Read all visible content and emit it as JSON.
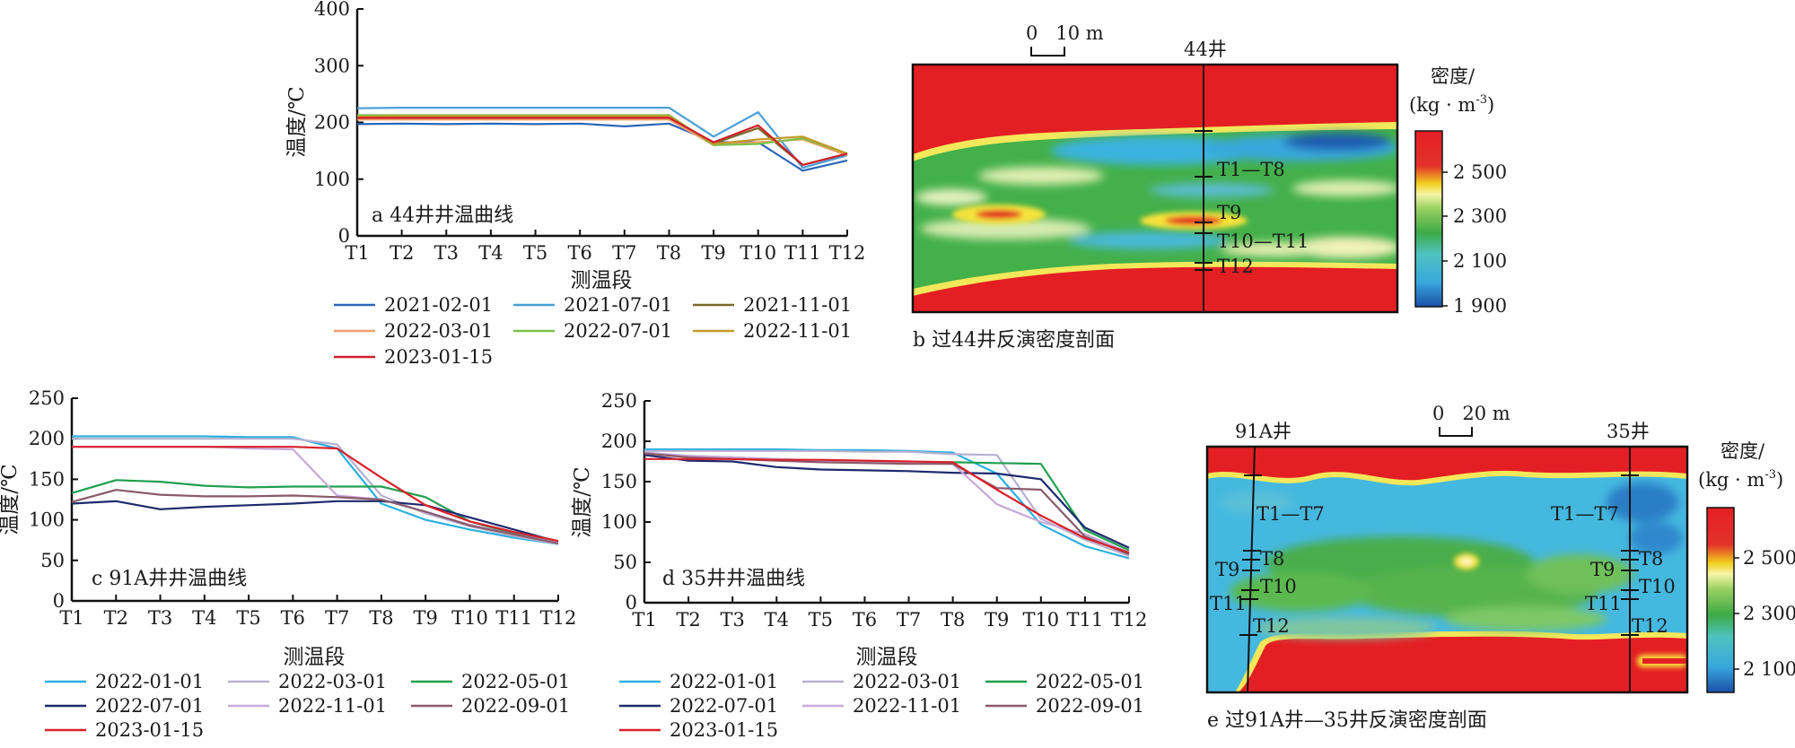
{
  "segments": [
    "T1",
    "T2",
    "T3",
    "T4",
    "T5",
    "T6",
    "T7",
    "T8",
    "T9",
    "T10",
    "T11",
    "T12"
  ],
  "chart_data": [
    {
      "id": "a",
      "type": "line",
      "caption": "a 44井井温曲线",
      "xlabel": "测温段",
      "ylabel": "温度/℃",
      "ylim": [
        0,
        400
      ],
      "yticks": [
        0,
        100,
        200,
        300,
        400
      ],
      "categories": [
        "T1",
        "T2",
        "T3",
        "T4",
        "T5",
        "T6",
        "T7",
        "T8",
        "T9",
        "T10",
        "T11",
        "T12"
      ],
      "series": [
        {
          "name": "2021-02-01",
          "color": "#2a66b8",
          "values": [
            197,
            198,
            197,
            198,
            197,
            198,
            193,
            198,
            165,
            165,
            115,
            133
          ]
        },
        {
          "name": "2021-07-01",
          "color": "#4a9fd8",
          "values": [
            225,
            226,
            226,
            226,
            226,
            226,
            226,
            226,
            175,
            218,
            120,
            142
          ]
        },
        {
          "name": "2021-11-01",
          "color": "#7a6a2a",
          "values": [
            210,
            210,
            210,
            210,
            210,
            210,
            210,
            210,
            163,
            190,
            125,
            145
          ]
        },
        {
          "name": "2022-03-01",
          "color": "#f0a06a",
          "values": [
            205,
            205,
            205,
            205,
            205,
            205,
            205,
            205,
            160,
            165,
            170,
            142
          ]
        },
        {
          "name": "2022-07-01",
          "color": "#7cc04a",
          "values": [
            213,
            213,
            213,
            213,
            213,
            213,
            213,
            213,
            160,
            162,
            172,
            145
          ]
        },
        {
          "name": "2022-11-01",
          "color": "#c49a2a",
          "values": [
            210,
            211,
            211,
            211,
            211,
            211,
            211,
            211,
            162,
            170,
            175,
            145
          ]
        },
        {
          "name": "2023-01-15",
          "color": "#d0202a",
          "values": [
            208,
            208,
            208,
            208,
            208,
            208,
            208,
            208,
            165,
            195,
            125,
            145
          ]
        }
      ]
    },
    {
      "id": "c",
      "type": "line",
      "caption": "c 91A井井温曲线",
      "xlabel": "测温段",
      "ylabel": "温度/℃",
      "ylim": [
        0,
        250
      ],
      "yticks": [
        0,
        50,
        100,
        150,
        200,
        250
      ],
      "categories": [
        "T1",
        "T2",
        "T3",
        "T4",
        "T5",
        "T6",
        "T7",
        "T8",
        "T9",
        "T10",
        "T11",
        "T12"
      ],
      "series": [
        {
          "name": "2022-01-01",
          "color": "#2ab0e0",
          "values": [
            203,
            203,
            203,
            203,
            202,
            202,
            188,
            120,
            100,
            88,
            78,
            70
          ]
        },
        {
          "name": "2022-03-01",
          "color": "#b8b0d0",
          "values": [
            200,
            200,
            200,
            200,
            200,
            200,
            193,
            130,
            108,
            92,
            80,
            70
          ]
        },
        {
          "name": "2022-05-01",
          "color": "#20a050",
          "values": [
            133,
            149,
            147,
            142,
            140,
            141,
            141,
            141,
            128,
            98,
            83,
            72
          ]
        },
        {
          "name": "2022-07-01",
          "color": "#1e2a6e",
          "values": [
            120,
            123,
            113,
            116,
            118,
            120,
            123,
            123,
            118,
            103,
            88,
            73
          ]
        },
        {
          "name": "2022-11-01",
          "color": "#c8a8d8",
          "values": [
            190,
            190,
            190,
            190,
            188,
            187,
            130,
            125,
            110,
            94,
            82,
            72
          ]
        },
        {
          "name": "2022-09-01",
          "color": "#8a5a6a",
          "values": [
            122,
            137,
            131,
            129,
            129,
            130,
            128,
            125,
            110,
            93,
            82,
            71
          ]
        },
        {
          "name": "2023-01-15",
          "color": "#d8202a",
          "values": [
            190,
            190,
            190,
            190,
            190,
            190,
            188,
            152,
            118,
            98,
            85,
            74
          ]
        }
      ]
    },
    {
      "id": "d",
      "type": "line",
      "caption": "d 35井井温曲线",
      "xlabel": "测温段",
      "ylabel": "温度/℃",
      "ylim": [
        0,
        250
      ],
      "yticks": [
        0,
        50,
        100,
        150,
        200,
        250
      ],
      "categories": [
        "T1",
        "T2",
        "T3",
        "T4",
        "T5",
        "T6",
        "T7",
        "T8",
        "T9",
        "T10",
        "T11",
        "T12"
      ],
      "series": [
        {
          "name": "2022-01-01",
          "color": "#2ab0e0",
          "values": [
            190,
            190,
            190,
            190,
            189,
            189,
            188,
            186,
            160,
            97,
            70,
            55
          ]
        },
        {
          "name": "2022-03-01",
          "color": "#b8b0d0",
          "values": [
            188,
            188,
            188,
            188,
            188,
            187,
            187,
            184,
            183,
            104,
            78,
            58
          ]
        },
        {
          "name": "2022-05-01",
          "color": "#20a050",
          "values": [
            185,
            182,
            180,
            178,
            176,
            175,
            174,
            174,
            173,
            172,
            90,
            65
          ]
        },
        {
          "name": "2022-07-01",
          "color": "#1e2a6e",
          "values": [
            183,
            176,
            175,
            168,
            165,
            164,
            163,
            161,
            160,
            153,
            93,
            68
          ]
        },
        {
          "name": "2022-11-01",
          "color": "#c8a8d8",
          "values": [
            186,
            182,
            180,
            178,
            176,
            175,
            173,
            172,
            122,
            100,
            85,
            62
          ]
        },
        {
          "name": "2022-09-01",
          "color": "#8a5a6a",
          "values": [
            185,
            180,
            178,
            176,
            174,
            173,
            172,
            172,
            142,
            140,
            82,
            60
          ]
        },
        {
          "name": "2023-01-15",
          "color": "#d8202a",
          "values": [
            178,
            178,
            178,
            177,
            177,
            176,
            175,
            174,
            140,
            108,
            80,
            62
          ]
        }
      ]
    },
    {
      "id": "b",
      "type": "heatmap",
      "caption": "b 过44井反演密度剖面",
      "well": "44井",
      "scale_label": "0   10 m",
      "section_labels": [
        "T1—T8",
        "T9",
        "T10—T11",
        "T12"
      ],
      "colorbar_title": "密度/",
      "colorbar_unit": "(kg · m",
      "colorbar_exp": "-3",
      "colorbar_close": ")",
      "colorbar_ticks": [
        "2 500",
        "2 300",
        "2 100",
        "1 900"
      ],
      "colorbar_range": [
        1900,
        2600
      ]
    },
    {
      "id": "e",
      "type": "heatmap",
      "caption": "e 过91A井—35井反演密度剖面",
      "wells": [
        "91A井",
        "35井"
      ],
      "scale_label": "0   20 m",
      "section_labels": [
        "T1—T7",
        "T8",
        "T9",
        "T10",
        "T11",
        "T12"
      ],
      "colorbar_title": "密度/",
      "colorbar_unit": "(kg · m",
      "colorbar_exp": "-3",
      "colorbar_close": ")",
      "colorbar_ticks": [
        "2 500",
        "2 300",
        "2 100"
      ],
      "colorbar_range": [
        2000,
        2600
      ]
    }
  ]
}
